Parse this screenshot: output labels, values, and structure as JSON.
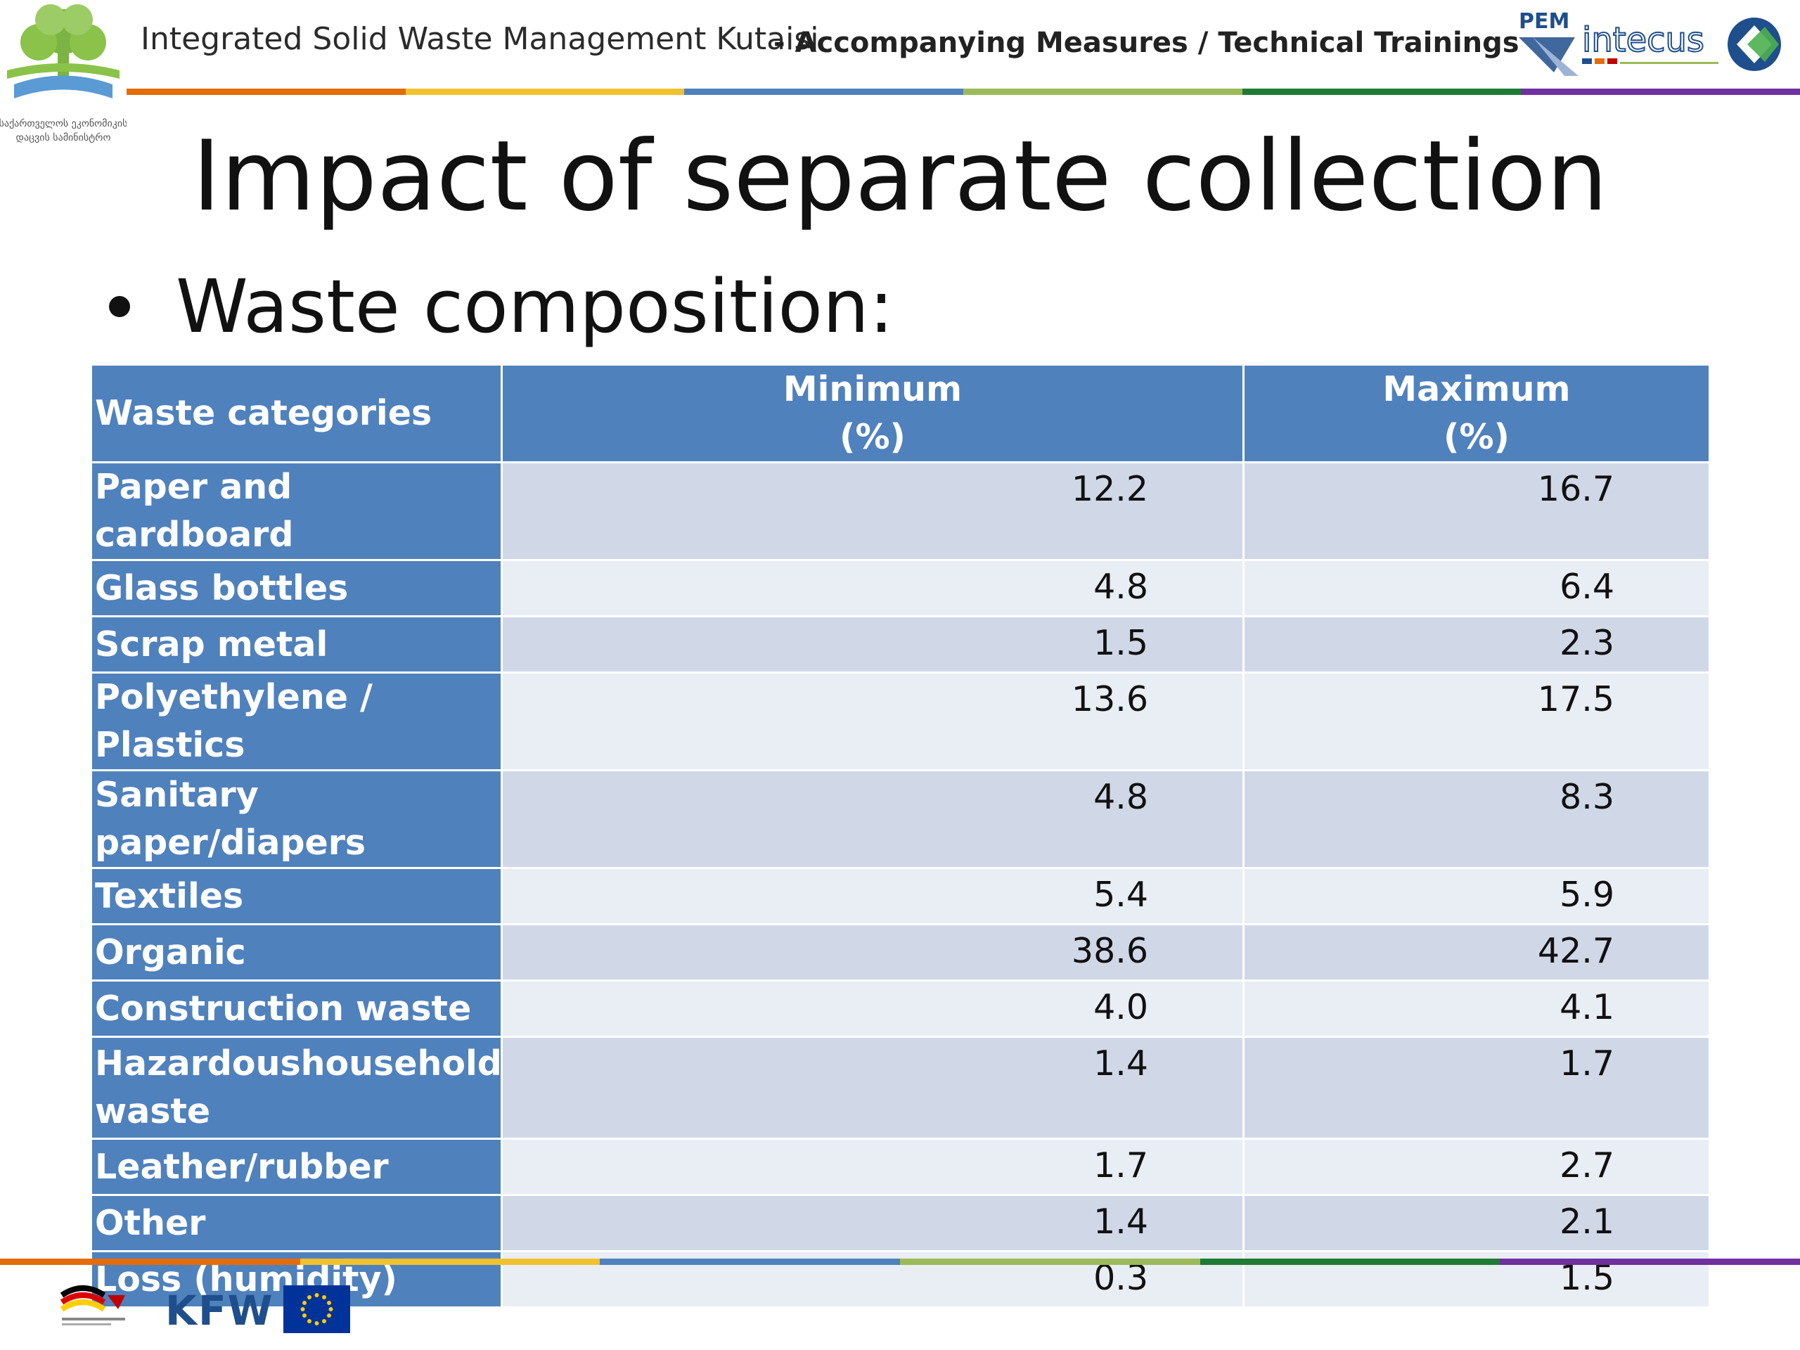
{
  "header": {
    "title": "Integrated Solid Waste Management Kutaisi",
    "subtitle": "- Accompanying Measures / Technical Trainings",
    "left_logo_text": [
      "საქართველოს ეკონომიკის",
      "დაცვის სამინისტრო"
    ],
    "right_logo_text": [
      "PEM",
      "intecus"
    ]
  },
  "slide": {
    "title": "Impact of separate collection",
    "bullet": "Waste composition:"
  },
  "table": {
    "headers": {
      "category": "Waste categories",
      "min_line1": "Minimum",
      "min_line2": "(%)",
      "max_line1": "Maximum",
      "max_line2": "(%)"
    },
    "rows": [
      {
        "category": "Paper and cardboard",
        "min": "12.2",
        "max": "16.7"
      },
      {
        "category": "Glass bottles",
        "min": "4.8",
        "max": "6.4"
      },
      {
        "category": "Scrap metal",
        "min": "1.5",
        "max": "2.3"
      },
      {
        "category": "Polyethylene / Plastics",
        "min": "13.6",
        "max": "17.5"
      },
      {
        "category": "Sanitary paper/diapers",
        "min": "4.8",
        "max": "8.3"
      },
      {
        "category": "Textiles",
        "min": "5.4",
        "max": "5.9"
      },
      {
        "category": "Organic",
        "min": "38.6",
        "max": "42.7"
      },
      {
        "category": "Construction waste",
        "min": "4.0",
        "max": "4.1"
      },
      {
        "category_word1": "Hazardous",
        "category_word2": "household",
        "category_word3": "waste",
        "min": "1.4",
        "max": "1.7"
      },
      {
        "category": "Leather/rubber",
        "min": "1.7",
        "max": "2.7"
      },
      {
        "category": "Other",
        "min": "1.4",
        "max": "2.1"
      },
      {
        "category": "Loss (humidity)",
        "min": "0.3",
        "max": "1.5"
      }
    ]
  },
  "footer": {
    "kfw": "KFW"
  },
  "colors": {
    "table_header": "#4f81bd",
    "row_odd": "#d0d8e8",
    "row_even": "#e9edf4",
    "stripe": [
      "#e46c0a",
      "#f2c12e",
      "#4f81bd",
      "#9bbb59",
      "#1e7b34",
      "#7030a0"
    ]
  }
}
